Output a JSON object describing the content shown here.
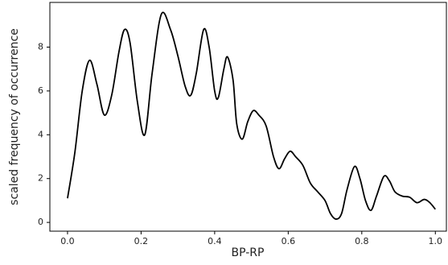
{
  "chart_data": {
    "type": "line",
    "xlabel": "BP-RP",
    "ylabel": "scaled frequency of occurrence",
    "x": [
      0.0,
      0.02,
      0.04,
      0.06,
      0.08,
      0.1,
      0.12,
      0.14,
      0.155,
      0.17,
      0.19,
      0.21,
      0.23,
      0.255,
      0.28,
      0.3,
      0.32,
      0.335,
      0.35,
      0.37,
      0.385,
      0.4,
      0.41,
      0.425,
      0.435,
      0.45,
      0.46,
      0.475,
      0.49,
      0.505,
      0.52,
      0.54,
      0.56,
      0.575,
      0.59,
      0.605,
      0.62,
      0.64,
      0.66,
      0.68,
      0.7,
      0.715,
      0.73,
      0.745,
      0.76,
      0.78,
      0.795,
      0.81,
      0.825,
      0.84,
      0.86,
      0.875,
      0.89,
      0.91,
      0.93,
      0.95,
      0.97,
      0.985,
      1.0
    ],
    "series": [
      {
        "color": "#000000",
        "values": [
          1.1,
          3.2,
          6.0,
          7.4,
          6.3,
          4.9,
          5.8,
          7.8,
          8.8,
          8.2,
          5.5,
          4.0,
          6.8,
          9.5,
          8.8,
          7.6,
          6.2,
          5.8,
          6.8,
          8.8,
          8.0,
          6.0,
          5.7,
          7.0,
          7.55,
          6.5,
          4.5,
          3.8,
          4.6,
          5.1,
          4.9,
          4.4,
          3.0,
          2.45,
          2.9,
          3.25,
          3.0,
          2.6,
          1.8,
          1.4,
          1.0,
          0.4,
          0.15,
          0.4,
          1.5,
          2.55,
          2.0,
          1.0,
          0.55,
          1.2,
          2.1,
          1.9,
          1.4,
          1.2,
          1.15,
          0.9,
          1.05,
          0.9,
          0.6
        ]
      }
    ],
    "xlim": [
      -0.048,
      1.03
    ],
    "ylim": [
      -0.4,
      10.04
    ],
    "xticks": [
      {
        "value": 0,
        "label": "0.0"
      },
      0.2,
      0.4,
      0.6,
      0.8,
      {
        "value": 1,
        "label": "1.0"
      }
    ],
    "yticks": [
      0,
      2,
      4,
      6,
      8
    ]
  }
}
